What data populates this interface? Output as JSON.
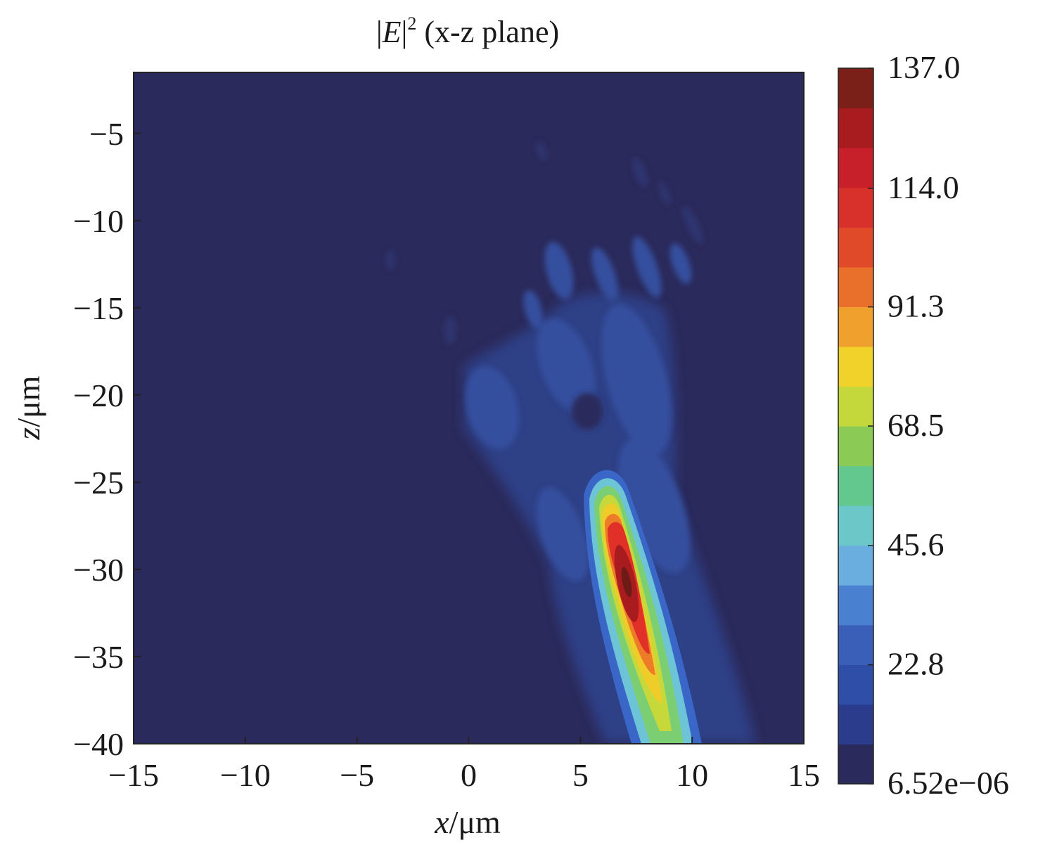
{
  "chart_data": {
    "type": "heatmap",
    "title_quantity": "E",
    "title_exponent": "2",
    "title_rest": " (x-z plane)",
    "xlabel_var": "x",
    "xlabel_unit": "/μm",
    "ylabel_var": "z",
    "ylabel_unit": "/μm",
    "xlim": [
      -15,
      15
    ],
    "ylim": [
      -40,
      -1.5
    ],
    "x_ticks": [
      -15,
      -10,
      -5,
      0,
      5,
      10,
      15
    ],
    "x_tick_labels": [
      "−15",
      "−10",
      "−5",
      "0",
      "5",
      "10",
      "15"
    ],
    "y_ticks": [
      -5,
      -10,
      -15,
      -20,
      -25,
      -30,
      -35,
      -40
    ],
    "y_tick_labels": [
      "−5",
      "−10",
      "−15",
      "−20",
      "−25",
      "−30",
      "−35",
      "−40"
    ],
    "colorbar": {
      "min": 6.52e-06,
      "max": 137.0,
      "ticks": [
        6.52e-06,
        22.8,
        45.6,
        68.5,
        91.3,
        114.0,
        137.0
      ],
      "tick_labels": [
        "6.52e−06",
        "22.8",
        "45.6",
        "68.5",
        "91.3",
        "114.0",
        "137.0"
      ],
      "levels": 24,
      "colors": [
        "#2b2a5c",
        "#2b3c8c",
        "#2f4ea8",
        "#3a5fb8",
        "#4a80d0",
        "#6aaee0",
        "#6cc8c8",
        "#62c88e",
        "#8cca56",
        "#c4d83c",
        "#f0d22a",
        "#f0a02c",
        "#e8702a",
        "#e04a28",
        "#d8302a",
        "#c8202a",
        "#a81c20",
        "#7a2018"
      ]
    },
    "peak": {
      "x": 7,
      "z": -31,
      "value": 137.0
    },
    "grid": false
  }
}
